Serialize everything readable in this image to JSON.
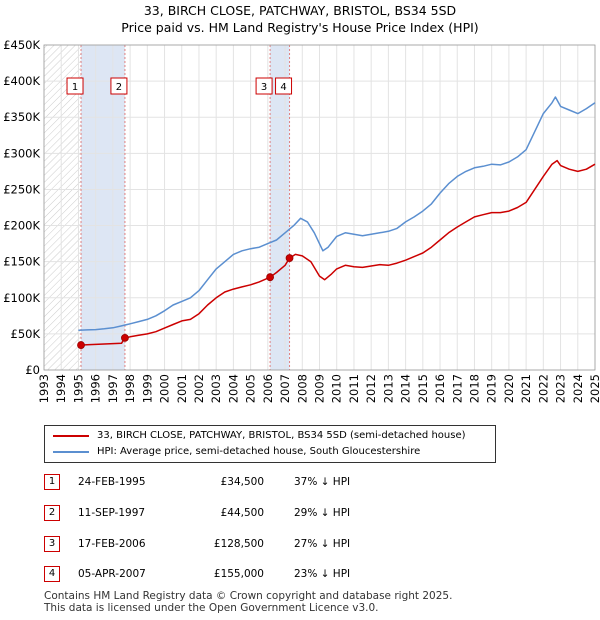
{
  "title_line1": "33, BIRCH CLOSE, PATCHWAY, BRISTOL, BS34 5SD",
  "title_line2": "Price paid vs. HM Land Registry's House Price Index (HPI)",
  "colors": {
    "property": "#cc0000",
    "hpi": "#5b8fd0",
    "shade": "#dde6f4",
    "marker_border": "#cc0000"
  },
  "legend": {
    "property_label": "33, BIRCH CLOSE, PATCHWAY, BRISTOL, BS34 5SD (semi-detached house)",
    "hpi_label": "HPI: Average price, semi-detached house, South Gloucestershire"
  },
  "sales": [
    {
      "num": "1",
      "date": "24-FEB-1995",
      "price": "£34,500",
      "hpi": "37% ↓ HPI"
    },
    {
      "num": "2",
      "date": "11-SEP-1997",
      "price": "£44,500",
      "hpi": "29% ↓ HPI"
    },
    {
      "num": "3",
      "date": "17-FEB-2006",
      "price": "£128,500",
      "hpi": "27% ↓ HPI"
    },
    {
      "num": "4",
      "date": "05-APR-2007",
      "price": "£155,000",
      "hpi": "23% ↓ HPI"
    }
  ],
  "footer_line1": "Contains HM Land Registry data © Crown copyright and database right 2025.",
  "footer_line2": "This data is licensed under the Open Government Licence v3.0.",
  "chart_data": {
    "type": "line",
    "title": "Price paid vs. HM Land Registry's House Price Index (HPI)",
    "xlabel": "",
    "ylabel": "",
    "xlim": [
      1993,
      2025
    ],
    "ylim": [
      0,
      450000
    ],
    "x_ticks": [
      1993,
      1994,
      1995,
      1996,
      1997,
      1998,
      1999,
      2000,
      2001,
      2002,
      2003,
      2004,
      2005,
      2006,
      2007,
      2008,
      2009,
      2010,
      2011,
      2012,
      2013,
      2014,
      2015,
      2016,
      2017,
      2018,
      2019,
      2020,
      2021,
      2022,
      2023,
      2024,
      2025
    ],
    "y_ticks": [
      0,
      50000,
      100000,
      150000,
      200000,
      250000,
      300000,
      350000,
      400000,
      450000
    ],
    "y_tick_labels": [
      "£0",
      "£50K",
      "£100K",
      "£150K",
      "£200K",
      "£250K",
      "£300K",
      "£350K",
      "£400K",
      "£450K"
    ],
    "grid": true,
    "series": [
      {
        "name": "33, BIRCH CLOSE, PATCHWAY, BRISTOL, BS34 5SD (semi-detached house)",
        "points": [
          [
            1995.15,
            34500
          ],
          [
            1995.5,
            35000
          ],
          [
            1996.0,
            35500
          ],
          [
            1996.5,
            36000
          ],
          [
            1997.0,
            36500
          ],
          [
            1997.5,
            37000
          ],
          [
            1997.7,
            44500
          ],
          [
            1998.0,
            46000
          ],
          [
            1998.5,
            48000
          ],
          [
            1999.0,
            50000
          ],
          [
            1999.5,
            53000
          ],
          [
            2000.0,
            58000
          ],
          [
            2000.5,
            63000
          ],
          [
            2001.0,
            68000
          ],
          [
            2001.5,
            70000
          ],
          [
            2002.0,
            78000
          ],
          [
            2002.5,
            90000
          ],
          [
            2003.0,
            100000
          ],
          [
            2003.5,
            108000
          ],
          [
            2004.0,
            112000
          ],
          [
            2004.5,
            115000
          ],
          [
            2005.0,
            118000
          ],
          [
            2005.5,
            122000
          ],
          [
            2006.13,
            128500
          ],
          [
            2006.5,
            135000
          ],
          [
            2007.0,
            145000
          ],
          [
            2007.26,
            155000
          ],
          [
            2007.6,
            160000
          ],
          [
            2008.0,
            158000
          ],
          [
            2008.5,
            150000
          ],
          [
            2009.0,
            130000
          ],
          [
            2009.3,
            125000
          ],
          [
            2009.7,
            133000
          ],
          [
            2010.0,
            140000
          ],
          [
            2010.5,
            145000
          ],
          [
            2011.0,
            143000
          ],
          [
            2011.5,
            142000
          ],
          [
            2012.0,
            144000
          ],
          [
            2012.5,
            146000
          ],
          [
            2013.0,
            145000
          ],
          [
            2013.5,
            148000
          ],
          [
            2014.0,
            152000
          ],
          [
            2014.5,
            157000
          ],
          [
            2015.0,
            162000
          ],
          [
            2015.5,
            170000
          ],
          [
            2016.0,
            180000
          ],
          [
            2016.5,
            190000
          ],
          [
            2017.0,
            198000
          ],
          [
            2017.5,
            205000
          ],
          [
            2018.0,
            212000
          ],
          [
            2018.5,
            215000
          ],
          [
            2019.0,
            218000
          ],
          [
            2019.5,
            218000
          ],
          [
            2020.0,
            220000
          ],
          [
            2020.5,
            225000
          ],
          [
            2021.0,
            232000
          ],
          [
            2021.5,
            250000
          ],
          [
            2022.0,
            268000
          ],
          [
            2022.5,
            285000
          ],
          [
            2022.8,
            290000
          ],
          [
            2023.0,
            283000
          ],
          [
            2023.5,
            278000
          ],
          [
            2024.0,
            275000
          ],
          [
            2024.5,
            278000
          ],
          [
            2025.0,
            285000
          ]
        ]
      },
      {
        "name": "HPI: Average price, semi-detached house, South Gloucestershire",
        "points": [
          [
            1995.0,
            55000
          ],
          [
            1995.5,
            55500
          ],
          [
            1996.0,
            56000
          ],
          [
            1996.5,
            57000
          ],
          [
            1997.0,
            58500
          ],
          [
            1997.5,
            61000
          ],
          [
            1998.0,
            64000
          ],
          [
            1998.5,
            67000
          ],
          [
            1999.0,
            70000
          ],
          [
            1999.5,
            75000
          ],
          [
            2000.0,
            82000
          ],
          [
            2000.5,
            90000
          ],
          [
            2001.0,
            95000
          ],
          [
            2001.5,
            100000
          ],
          [
            2002.0,
            110000
          ],
          [
            2002.5,
            125000
          ],
          [
            2003.0,
            140000
          ],
          [
            2003.5,
            150000
          ],
          [
            2004.0,
            160000
          ],
          [
            2004.5,
            165000
          ],
          [
            2005.0,
            168000
          ],
          [
            2005.5,
            170000
          ],
          [
            2006.0,
            175000
          ],
          [
            2006.5,
            180000
          ],
          [
            2007.0,
            190000
          ],
          [
            2007.5,
            200000
          ],
          [
            2007.9,
            210000
          ],
          [
            2008.3,
            205000
          ],
          [
            2008.7,
            190000
          ],
          [
            2009.2,
            165000
          ],
          [
            2009.5,
            170000
          ],
          [
            2010.0,
            185000
          ],
          [
            2010.5,
            190000
          ],
          [
            2011.0,
            188000
          ],
          [
            2011.5,
            186000
          ],
          [
            2012.0,
            188000
          ],
          [
            2012.5,
            190000
          ],
          [
            2013.0,
            192000
          ],
          [
            2013.5,
            196000
          ],
          [
            2014.0,
            205000
          ],
          [
            2014.5,
            212000
          ],
          [
            2015.0,
            220000
          ],
          [
            2015.5,
            230000
          ],
          [
            2016.0,
            245000
          ],
          [
            2016.5,
            258000
          ],
          [
            2017.0,
            268000
          ],
          [
            2017.5,
            275000
          ],
          [
            2018.0,
            280000
          ],
          [
            2018.5,
            282000
          ],
          [
            2019.0,
            285000
          ],
          [
            2019.5,
            284000
          ],
          [
            2020.0,
            288000
          ],
          [
            2020.5,
            295000
          ],
          [
            2021.0,
            305000
          ],
          [
            2021.5,
            330000
          ],
          [
            2022.0,
            355000
          ],
          [
            2022.5,
            370000
          ],
          [
            2022.7,
            378000
          ],
          [
            2023.0,
            365000
          ],
          [
            2023.5,
            360000
          ],
          [
            2024.0,
            355000
          ],
          [
            2024.5,
            362000
          ],
          [
            2025.0,
            370000
          ]
        ]
      }
    ],
    "sale_markers": [
      {
        "num": "1",
        "x": 1995.15,
        "y": 34500
      },
      {
        "num": "2",
        "x": 1997.7,
        "y": 44500
      },
      {
        "num": "3",
        "x": 2006.13,
        "y": 128500
      },
      {
        "num": "4",
        "x": 2007.26,
        "y": 155000
      }
    ],
    "shaded_ranges": [
      [
        1995.15,
        1997.7
      ],
      [
        2006.13,
        2007.26
      ]
    ]
  }
}
